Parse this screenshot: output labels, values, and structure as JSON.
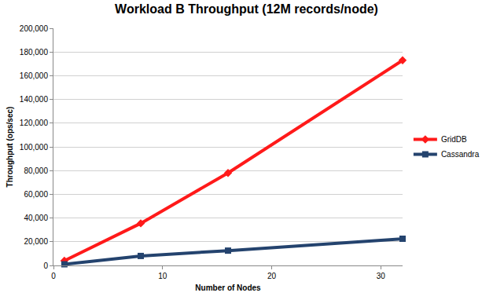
{
  "chart_data": {
    "type": "line",
    "title": "Workload B Throughput (12M records/node)",
    "x_label": "Number of Nodes",
    "y_label": "Throughput (ops/sec)",
    "x": [
      1,
      8,
      16,
      32
    ],
    "series": [
      {
        "name": "GridDB",
        "color": "#ff1a1a",
        "marker": "diamond",
        "values": [
          4000,
          35500,
          78000,
          173000
        ]
      },
      {
        "name": "Cassandra",
        "color": "#24436e",
        "marker": "square",
        "values": [
          1000,
          8000,
          12500,
          22500
        ]
      }
    ],
    "xlim": [
      0,
      32
    ],
    "xticks": [
      0,
      10,
      20,
      30
    ],
    "ylim": [
      0,
      200000
    ],
    "yticks": [
      0,
      {
        "value": 20000,
        "label": "20,000"
      },
      {
        "value": 40000,
        "label": "40,000"
      },
      {
        "value": 60000,
        "label": "60,000"
      },
      {
        "value": 80000,
        "label": "80,000"
      },
      {
        "value": 100000,
        "label": "100,000"
      },
      {
        "value": 120000,
        "label": "120,000"
      },
      {
        "value": 140000,
        "label": "140,000"
      },
      {
        "value": 160000,
        "label": "160,000"
      },
      {
        "value": 180000,
        "label": "180,000"
      },
      {
        "value": 200000,
        "label": "200,000"
      }
    ],
    "grid": true,
    "legend": "right"
  }
}
